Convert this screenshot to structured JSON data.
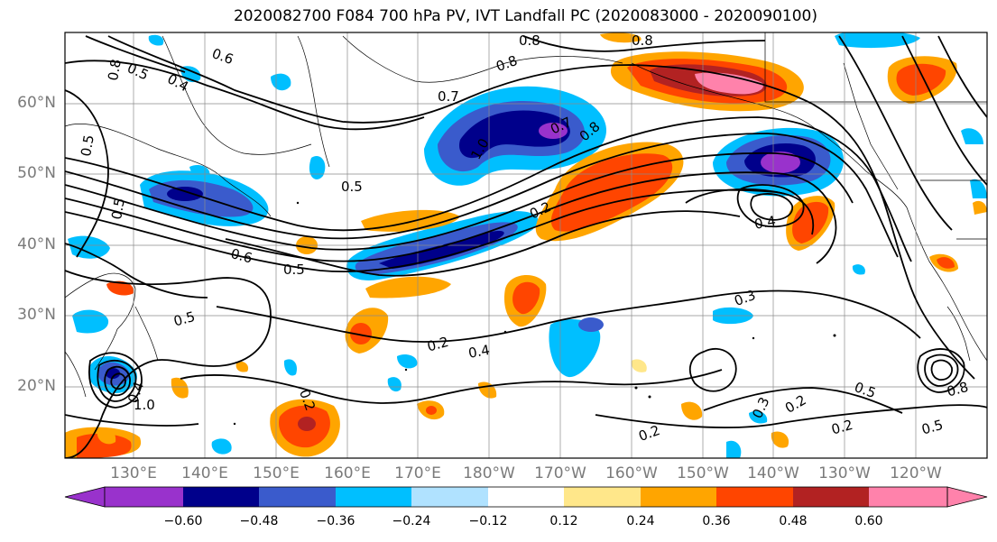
{
  "title": "2020082700 F084 700 hPa PV, IVT Landfall PC (2020083000 - 2020090100)",
  "lat_labels": [
    "60°N",
    "50°N",
    "40°N",
    "30°N",
    "20°N"
  ],
  "lon_labels": [
    "130°E",
    "140°E",
    "150°E",
    "160°E",
    "170°E",
    "180°W",
    "170°W",
    "160°W",
    "150°W",
    "140°W",
    "130°W",
    "120°W"
  ],
  "colorbar": {
    "ticks": [
      "−0.60",
      "−0.48",
      "−0.36",
      "−0.24",
      "−0.12",
      "0.12",
      "0.24",
      "0.36",
      "0.48",
      "0.60"
    ],
    "colors": [
      "#9932cc",
      "#00008b",
      "#3a5bcc",
      "#00bfff",
      "#b0e2ff",
      "#ffffff",
      "#ffe78a",
      "#ffa500",
      "#ff4500",
      "#b22222",
      "#ff82ab"
    ]
  },
  "contour_labels": [
    "0.8",
    "0.6",
    "0.5",
    "0.4",
    "0.8",
    "0.8",
    "0.8",
    "0.7",
    "1.0",
    "0.8",
    "0.5",
    "0.5",
    "0.6",
    "0.5",
    "0.7",
    "0.2",
    "0.4",
    "0.3",
    "0.4",
    "0.2",
    "0.2",
    "0.2",
    "0.3",
    "0.2",
    "0.2",
    "0.5",
    "0.5",
    "0.5",
    "0.4",
    "1.0",
    "0.8",
    "0.5"
  ]
}
